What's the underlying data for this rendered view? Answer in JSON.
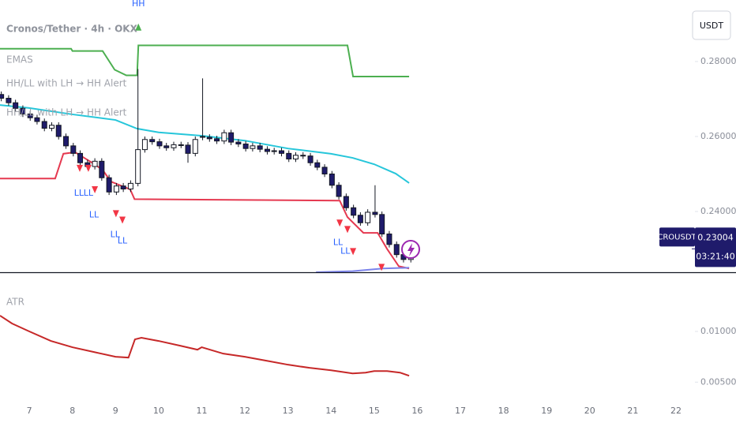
{
  "chart_data": [
    {
      "type": "candlestick",
      "title": "Cronos/Tether · 4h · OKX",
      "symbol": "CROUSDT",
      "currency": "USDT",
      "last_price": 0.23004,
      "countdown": "03:21:40",
      "indicator_labels": [
        "EMAS",
        "HH/LL with LH → HH Alert",
        "HH/LL with LH → HH Alert"
      ],
      "up_color": "#ffffff",
      "down_color": "#1f1b6b",
      "border_color": "#131722",
      "xlim": [
        6.32,
        22.44
      ],
      "ylim": [
        0.2238,
        0.2964
      ],
      "yticks": [
        {
          "value": 0.28,
          "label": "0.28000"
        },
        {
          "value": 0.26,
          "label": "0.26000"
        },
        {
          "value": 0.24,
          "label": "0.24000"
        }
      ],
      "x": [
        6.35,
        6.52,
        6.68,
        6.85,
        7.02,
        7.18,
        7.35,
        7.52,
        7.68,
        7.85,
        8.02,
        8.18,
        8.35,
        8.52,
        8.68,
        8.85,
        9.02,
        9.18,
        9.35,
        9.52,
        9.68,
        9.85,
        10.02,
        10.18,
        10.35,
        10.52,
        10.68,
        10.85,
        11.02,
        11.18,
        11.35,
        11.52,
        11.68,
        11.85,
        12.02,
        12.18,
        12.35,
        12.52,
        12.68,
        12.85,
        13.02,
        13.18,
        13.35,
        13.52,
        13.68,
        13.85,
        14.02,
        14.18,
        14.35,
        14.52,
        14.68,
        14.85,
        15.02,
        15.18,
        15.35,
        15.52,
        15.68,
        15.85
      ],
      "open": [
        0.2712,
        0.2702,
        0.269,
        0.2675,
        0.266,
        0.265,
        0.264,
        0.2622,
        0.263,
        0.26,
        0.2575,
        0.2555,
        0.253,
        0.252,
        0.2534,
        0.249,
        0.2452,
        0.2468,
        0.246,
        0.2475,
        0.2565,
        0.2592,
        0.2586,
        0.2575,
        0.257,
        0.2578,
        0.2577,
        0.2555,
        0.26,
        0.2598,
        0.2594,
        0.2588,
        0.261,
        0.2585,
        0.258,
        0.2568,
        0.2575,
        0.2566,
        0.256,
        0.2562,
        0.2555,
        0.254,
        0.255,
        0.2548,
        0.253,
        0.2518,
        0.25,
        0.247,
        0.244,
        0.241,
        0.239,
        0.237,
        0.2398,
        0.2392,
        0.234,
        0.2312,
        0.2285,
        0.2272
      ],
      "high": [
        0.272,
        0.271,
        0.2698,
        0.2683,
        0.2668,
        0.2658,
        0.2648,
        0.2638,
        0.2638,
        0.2608,
        0.2583,
        0.2563,
        0.2538,
        0.2542,
        0.2542,
        0.2498,
        0.2476,
        0.2476,
        0.2483,
        0.278,
        0.26,
        0.26,
        0.2594,
        0.2583,
        0.2586,
        0.2586,
        0.2585,
        0.26,
        0.2755,
        0.2606,
        0.2602,
        0.2618,
        0.2618,
        0.2593,
        0.2588,
        0.2583,
        0.2583,
        0.2574,
        0.257,
        0.257,
        0.2563,
        0.2558,
        0.2558,
        0.2556,
        0.2538,
        0.2526,
        0.2508,
        0.2478,
        0.2448,
        0.2418,
        0.2398,
        0.2406,
        0.247,
        0.24,
        0.2348,
        0.232,
        0.2293,
        0.2308
      ],
      "low": [
        0.2694,
        0.2682,
        0.2667,
        0.2652,
        0.2642,
        0.2632,
        0.2614,
        0.2614,
        0.2592,
        0.2567,
        0.2547,
        0.2522,
        0.2512,
        0.2512,
        0.2482,
        0.2444,
        0.2444,
        0.2452,
        0.2452,
        0.2467,
        0.2557,
        0.2578,
        0.2567,
        0.2562,
        0.2562,
        0.2569,
        0.253,
        0.2547,
        0.259,
        0.2586,
        0.258,
        0.258,
        0.2577,
        0.2572,
        0.256,
        0.256,
        0.2558,
        0.2552,
        0.2552,
        0.2547,
        0.2532,
        0.2532,
        0.254,
        0.2522,
        0.251,
        0.2492,
        0.2462,
        0.2432,
        0.2402,
        0.2382,
        0.2362,
        0.2362,
        0.2384,
        0.2332,
        0.2304,
        0.2277,
        0.2264,
        0.2264
      ],
      "close": [
        0.2702,
        0.269,
        0.2675,
        0.266,
        0.265,
        0.264,
        0.2622,
        0.263,
        0.26,
        0.2575,
        0.2555,
        0.253,
        0.252,
        0.2534,
        0.249,
        0.2452,
        0.2468,
        0.246,
        0.2475,
        0.2565,
        0.2592,
        0.2586,
        0.2575,
        0.257,
        0.2578,
        0.2577,
        0.2555,
        0.2592,
        0.2598,
        0.2594,
        0.2588,
        0.261,
        0.2585,
        0.258,
        0.2568,
        0.2575,
        0.2566,
        0.256,
        0.2562,
        0.2555,
        0.254,
        0.255,
        0.2548,
        0.253,
        0.2518,
        0.25,
        0.247,
        0.244,
        0.241,
        0.239,
        0.237,
        0.2398,
        0.2392,
        0.234,
        0.2312,
        0.2285,
        0.2272,
        0.23004
      ],
      "lines": [
        {
          "color": "#4caf50",
          "x": [
            6.32,
            7.97,
            8.0,
            8.7,
            8.98,
            9.25,
            9.5,
            9.53,
            14.38,
            14.51,
            15.81
          ],
          "values": [
            0.2834,
            0.2834,
            0.2828,
            0.2828,
            0.2778,
            0.2763,
            0.2763,
            0.2843,
            0.2843,
            0.276,
            0.276
          ]
        },
        {
          "color": "#26c6da",
          "x": [
            6.32,
            7.0,
            8.0,
            9.0,
            9.5,
            10.0,
            11.0,
            12.0,
            13.0,
            14.0,
            14.5,
            15.0,
            15.5,
            15.81
          ],
          "values": [
            0.2684,
            0.2676,
            0.2659,
            0.2644,
            0.2621,
            0.2611,
            0.2602,
            0.2589,
            0.2568,
            0.2554,
            0.2543,
            0.2526,
            0.2501,
            0.2476
          ]
        },
        {
          "color": "#e53950",
          "x": [
            6.32,
            7.6,
            7.79,
            8.06,
            8.43,
            8.7,
            8.89,
            9.34,
            9.44,
            14.2,
            14.38,
            14.75,
            15.08,
            15.3,
            15.57,
            15.81
          ],
          "values": [
            0.2488,
            0.2488,
            0.2554,
            0.2558,
            0.2532,
            0.2511,
            0.248,
            0.2459,
            0.2433,
            0.2429,
            0.2385,
            0.2343,
            0.2343,
            0.23,
            0.2254,
            0.2248
          ]
        },
        {
          "color": "#7b83eb",
          "x": [
            13.65,
            14.5,
            15.2,
            15.81
          ],
          "values": [
            0.2238,
            0.2241,
            0.2248,
            0.225
          ]
        }
      ],
      "annotations": [
        {
          "text": "HH",
          "x": 9.53,
          "y": 0.2954,
          "color": "#2962ff"
        },
        {
          "text": "LL",
          "x": 8.15,
          "y": 0.2448,
          "color": "#2962ff"
        },
        {
          "text": "LL",
          "x": 8.37,
          "y": 0.2448,
          "color": "#2962ff"
        },
        {
          "text": "LL",
          "x": 8.5,
          "y": 0.2391,
          "color": "#2962ff"
        },
        {
          "text": "LL",
          "x": 8.99,
          "y": 0.2338,
          "color": "#2962ff"
        },
        {
          "text": "LL",
          "x": 9.16,
          "y": 0.2321,
          "color": "#2962ff"
        },
        {
          "text": "LL",
          "x": 14.16,
          "y": 0.2317,
          "color": "#2962ff"
        },
        {
          "text": "LL",
          "x": 14.33,
          "y": 0.2294,
          "color": "#2962ff"
        }
      ],
      "markers": [
        {
          "shape": "up",
          "x": 9.53,
          "y": 0.2891,
          "color": "#4caf50"
        },
        {
          "shape": "down",
          "x": 8.17,
          "y": 0.2516,
          "color": "#f23645"
        },
        {
          "shape": "down",
          "x": 8.37,
          "y": 0.2516,
          "color": "#f23645"
        },
        {
          "shape": "down",
          "x": 8.52,
          "y": 0.2459,
          "color": "#f23645"
        },
        {
          "shape": "down",
          "x": 9.01,
          "y": 0.2395,
          "color": "#f23645"
        },
        {
          "shape": "down",
          "x": 9.16,
          "y": 0.2378,
          "color": "#f23645"
        },
        {
          "shape": "down",
          "x": 14.2,
          "y": 0.237,
          "color": "#f23645"
        },
        {
          "shape": "down",
          "x": 14.38,
          "y": 0.2353,
          "color": "#f23645"
        },
        {
          "shape": "down",
          "x": 14.51,
          "y": 0.2294,
          "color": "#f23645"
        },
        {
          "shape": "down",
          "x": 15.17,
          "y": 0.2252,
          "color": "#f23645"
        }
      ]
    },
    {
      "type": "line",
      "title": "ATR",
      "color": "#c62828",
      "xlim": [
        6.32,
        22.44
      ],
      "ylim": [
        0.003,
        0.0156
      ],
      "yticks": [
        {
          "value": 0.01,
          "label": "0.01000"
        },
        {
          "value": 0.005,
          "label": "0.00500"
        }
      ],
      "xticks": [
        7,
        8,
        9,
        10,
        11,
        12,
        13,
        14,
        15,
        16,
        17,
        18,
        19,
        20,
        21,
        22
      ],
      "x": [
        6.32,
        6.6,
        7.0,
        7.5,
        8.0,
        8.5,
        9.0,
        9.3,
        9.45,
        9.6,
        10.0,
        10.5,
        10.9,
        11.0,
        11.5,
        12.0,
        12.5,
        13.0,
        13.5,
        14.0,
        14.5,
        14.8,
        15.0,
        15.3,
        15.6,
        15.81
      ],
      "values": [
        0.01156,
        0.01078,
        0.01,
        0.00906,
        0.00844,
        0.00797,
        0.0075,
        0.00742,
        0.00922,
        0.00938,
        0.00906,
        0.00859,
        0.0082,
        0.00844,
        0.00781,
        0.0075,
        0.00711,
        0.00672,
        0.00641,
        0.00617,
        0.00586,
        0.00594,
        0.00609,
        0.00609,
        0.00594,
        0.00563
      ]
    }
  ]
}
